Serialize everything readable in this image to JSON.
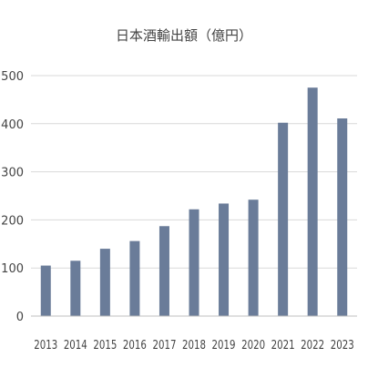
{
  "chart_data": {
    "type": "bar",
    "title": "日本酒輸出額（億円）",
    "xlabel": "",
    "ylabel": "",
    "categories": [
      "2013",
      "2014",
      "2015",
      "2016",
      "2017",
      "2018",
      "2019",
      "2020",
      "2021",
      "2022",
      "2023"
    ],
    "values": [
      105,
      115,
      140,
      156,
      187,
      222,
      234,
      242,
      402,
      475,
      411
    ],
    "ylim": [
      0,
      500
    ],
    "yticks": [
      0,
      100,
      200,
      300,
      400,
      500
    ],
    "grid": true,
    "legend": "none",
    "colors": {
      "bar": "#6a7c99",
      "grid": "#d9d9d9",
      "axis": "#bfbfbf",
      "text": "#444444"
    }
  }
}
